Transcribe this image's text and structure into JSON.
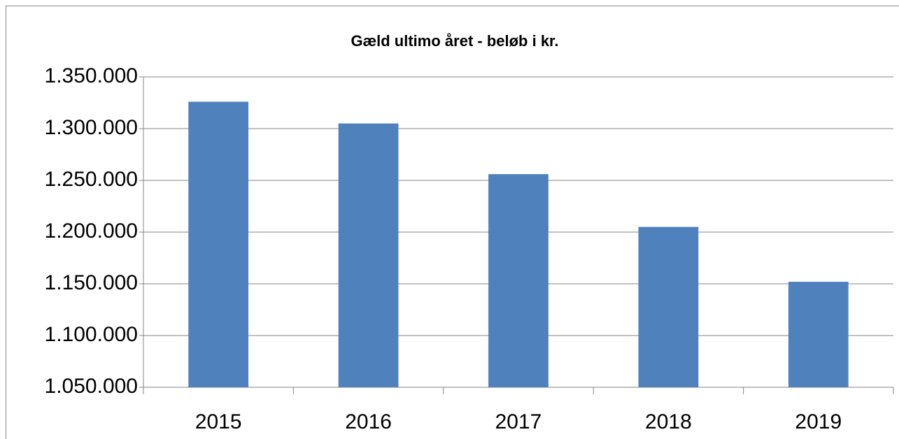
{
  "chart_data": {
    "type": "bar",
    "title": "Gæld ultimo året - beløb i kr.",
    "categories": [
      "2015",
      "2016",
      "2017",
      "2018",
      "2019"
    ],
    "values": [
      1326000,
      1305000,
      1256000,
      1205000,
      1152000
    ],
    "color": "#4f81bd",
    "ylim": [
      1050000,
      1350000
    ],
    "yticks": [
      {
        "value": 1050000,
        "label": "1.050.000"
      },
      {
        "value": 1100000,
        "label": "1.100.000"
      },
      {
        "value": 1150000,
        "label": "1.150.000"
      },
      {
        "value": 1200000,
        "label": "1.200.000"
      },
      {
        "value": 1250000,
        "label": "1.250.000"
      },
      {
        "value": 1300000,
        "label": "1.300.000"
      },
      {
        "value": 1350000,
        "label": "1.350.000"
      }
    ],
    "grid": true
  }
}
